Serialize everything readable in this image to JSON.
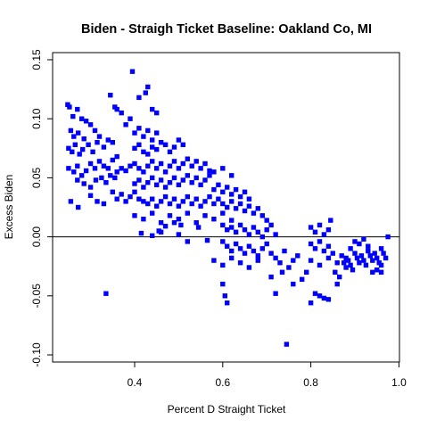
{
  "chart_data": {
    "type": "scatter",
    "title": "Biden - Straigh Ticket Baseline: Oakland Co, MI",
    "xlabel": "Percent D Straight Ticket",
    "ylabel": "Excess Biden",
    "xlim": [
      0.23,
      0.985
    ],
    "ylim": [
      -0.1,
      0.15
    ],
    "x_ticks": [
      0.4,
      0.6,
      0.8,
      1.0
    ],
    "x_tick_labels": [
      "0.4",
      "0.6",
      "0.8",
      "1.0"
    ],
    "y_ticks": [
      -0.1,
      -0.05,
      0.0,
      0.05,
      0.1,
      0.15
    ],
    "y_tick_labels": [
      "-0.10",
      "-0.05",
      "0.00",
      "0.05",
      "0.10",
      "0.15"
    ],
    "reference_line_y": 0.0,
    "grid": false,
    "legend": "none",
    "colors": {
      "points": "#0000ff",
      "axes": "#000000",
      "reference_line": "#000000"
    },
    "points": [
      [
        0.248,
        0.112
      ],
      [
        0.252,
        0.11
      ],
      [
        0.26,
        0.102
      ],
      [
        0.27,
        0.108
      ],
      [
        0.28,
        0.1
      ],
      [
        0.29,
        0.098
      ],
      [
        0.255,
        0.09
      ],
      [
        0.262,
        0.085
      ],
      [
        0.272,
        0.088
      ],
      [
        0.285,
        0.083
      ],
      [
        0.3,
        0.095
      ],
      [
        0.31,
        0.09
      ],
      [
        0.25,
        0.075
      ],
      [
        0.258,
        0.072
      ],
      [
        0.265,
        0.078
      ],
      [
        0.275,
        0.07
      ],
      [
        0.282,
        0.074
      ],
      [
        0.295,
        0.078
      ],
      [
        0.305,
        0.072
      ],
      [
        0.315,
        0.08
      ],
      [
        0.32,
        0.085
      ],
      [
        0.33,
        0.076
      ],
      [
        0.34,
        0.082
      ],
      [
        0.35,
        0.08
      ],
      [
        0.25,
        0.058
      ],
      [
        0.262,
        0.055
      ],
      [
        0.27,
        0.06
      ],
      [
        0.28,
        0.052
      ],
      [
        0.29,
        0.056
      ],
      [
        0.3,
        0.062
      ],
      [
        0.31,
        0.058
      ],
      [
        0.32,
        0.064
      ],
      [
        0.33,
        0.06
      ],
      [
        0.34,
        0.058
      ],
      [
        0.35,
        0.065
      ],
      [
        0.36,
        0.068
      ],
      [
        0.27,
        0.048
      ],
      [
        0.285,
        0.045
      ],
      [
        0.3,
        0.042
      ],
      [
        0.312,
        0.048
      ],
      [
        0.325,
        0.05
      ],
      [
        0.335,
        0.046
      ],
      [
        0.345,
        0.052
      ],
      [
        0.355,
        0.05
      ],
      [
        0.36,
        0.055
      ],
      [
        0.37,
        0.058
      ],
      [
        0.38,
        0.056
      ],
      [
        0.39,
        0.06
      ],
      [
        0.255,
        0.03
      ],
      [
        0.272,
        0.025
      ],
      [
        0.3,
        0.035
      ],
      [
        0.315,
        0.03
      ],
      [
        0.33,
        0.028
      ],
      [
        0.35,
        0.038
      ],
      [
        0.36,
        0.032
      ],
      [
        0.37,
        0.036
      ],
      [
        0.38,
        0.03
      ],
      [
        0.39,
        0.034
      ],
      [
        0.4,
        0.038
      ],
      [
        0.41,
        0.032
      ],
      [
        0.345,
        0.12
      ],
      [
        0.355,
        0.11
      ],
      [
        0.36,
        0.108
      ],
      [
        0.37,
        0.105
      ],
      [
        0.38,
        0.095
      ],
      [
        0.39,
        0.1
      ],
      [
        0.395,
        0.14
      ],
      [
        0.41,
        0.118
      ],
      [
        0.425,
        0.122
      ],
      [
        0.43,
        0.127
      ],
      [
        0.44,
        0.108
      ],
      [
        0.45,
        0.105
      ],
      [
        0.4,
        0.088
      ],
      [
        0.41,
        0.092
      ],
      [
        0.42,
        0.085
      ],
      [
        0.43,
        0.09
      ],
      [
        0.44,
        0.082
      ],
      [
        0.45,
        0.088
      ],
      [
        0.4,
        0.075
      ],
      [
        0.41,
        0.078
      ],
      [
        0.42,
        0.072
      ],
      [
        0.43,
        0.07
      ],
      [
        0.44,
        0.076
      ],
      [
        0.45,
        0.074
      ],
      [
        0.46,
        0.08
      ],
      [
        0.47,
        0.078
      ],
      [
        0.48,
        0.072
      ],
      [
        0.49,
        0.076
      ],
      [
        0.5,
        0.082
      ],
      [
        0.51,
        0.078
      ],
      [
        0.4,
        0.062
      ],
      [
        0.41,
        0.058
      ],
      [
        0.42,
        0.055
      ],
      [
        0.43,
        0.06
      ],
      [
        0.44,
        0.064
      ],
      [
        0.45,
        0.058
      ],
      [
        0.46,
        0.062
      ],
      [
        0.47,
        0.055
      ],
      [
        0.48,
        0.06
      ],
      [
        0.49,
        0.064
      ],
      [
        0.5,
        0.058
      ],
      [
        0.51,
        0.062
      ],
      [
        0.52,
        0.066
      ],
      [
        0.53,
        0.06
      ],
      [
        0.54,
        0.064
      ],
      [
        0.55,
        0.058
      ],
      [
        0.56,
        0.062
      ],
      [
        0.57,
        0.056
      ],
      [
        0.4,
        0.045
      ],
      [
        0.41,
        0.048
      ],
      [
        0.42,
        0.042
      ],
      [
        0.43,
        0.046
      ],
      [
        0.44,
        0.05
      ],
      [
        0.45,
        0.044
      ],
      [
        0.46,
        0.048
      ],
      [
        0.47,
        0.042
      ],
      [
        0.48,
        0.046
      ],
      [
        0.49,
        0.05
      ],
      [
        0.5,
        0.044
      ],
      [
        0.51,
        0.048
      ],
      [
        0.52,
        0.052
      ],
      [
        0.53,
        0.046
      ],
      [
        0.54,
        0.05
      ],
      [
        0.55,
        0.044
      ],
      [
        0.56,
        0.048
      ],
      [
        0.57,
        0.052
      ],
      [
        0.42,
        0.03
      ],
      [
        0.43,
        0.028
      ],
      [
        0.44,
        0.032
      ],
      [
        0.45,
        0.026
      ],
      [
        0.46,
        0.03
      ],
      [
        0.47,
        0.034
      ],
      [
        0.48,
        0.028
      ],
      [
        0.49,
        0.032
      ],
      [
        0.5,
        0.026
      ],
      [
        0.51,
        0.03
      ],
      [
        0.52,
        0.034
      ],
      [
        0.53,
        0.028
      ],
      [
        0.54,
        0.032
      ],
      [
        0.55,
        0.026
      ],
      [
        0.56,
        0.03
      ],
      [
        0.57,
        0.034
      ],
      [
        0.58,
        0.028
      ],
      [
        0.59,
        0.032
      ],
      [
        0.4,
        0.018
      ],
      [
        0.42,
        0.015
      ],
      [
        0.44,
        0.02
      ],
      [
        0.46,
        0.012
      ],
      [
        0.48,
        0.018
      ],
      [
        0.5,
        0.015
      ],
      [
        0.52,
        0.02
      ],
      [
        0.54,
        0.012
      ],
      [
        0.56,
        0.018
      ],
      [
        0.58,
        0.015
      ],
      [
        0.6,
        0.02
      ],
      [
        0.62,
        0.014
      ],
      [
        0.415,
        0.003
      ],
      [
        0.455,
        0.005
      ],
      [
        0.5,
        0.002
      ],
      [
        0.52,
        -0.004
      ],
      [
        0.545,
        0.008
      ],
      [
        0.565,
        -0.003
      ],
      [
        0.335,
        -0.048
      ],
      [
        0.44,
        0.001
      ],
      [
        0.46,
        0.004
      ],
      [
        0.47,
        0.009
      ],
      [
        0.49,
        0.012
      ],
      [
        0.505,
        0.01
      ],
      [
        0.58,
        0.04
      ],
      [
        0.59,
        0.044
      ],
      [
        0.6,
        0.038
      ],
      [
        0.61,
        0.042
      ],
      [
        0.62,
        0.036
      ],
      [
        0.63,
        0.04
      ],
      [
        0.64,
        0.034
      ],
      [
        0.65,
        0.038
      ],
      [
        0.66,
        0.032
      ],
      [
        0.58,
        0.055
      ],
      [
        0.6,
        0.058
      ],
      [
        0.62,
        0.052
      ],
      [
        0.6,
        0.028
      ],
      [
        0.61,
        0.025
      ],
      [
        0.62,
        0.03
      ],
      [
        0.63,
        0.024
      ],
      [
        0.64,
        0.028
      ],
      [
        0.65,
        0.022
      ],
      [
        0.66,
        0.026
      ],
      [
        0.67,
        0.02
      ],
      [
        0.68,
        0.024
      ],
      [
        0.69,
        0.018
      ],
      [
        0.7,
        0.014
      ],
      [
        0.71,
        0.01
      ],
      [
        0.6,
        0.01
      ],
      [
        0.61,
        0.006
      ],
      [
        0.62,
        0.008
      ],
      [
        0.63,
        0.004
      ],
      [
        0.64,
        0.01
      ],
      [
        0.65,
        0.006
      ],
      [
        0.66,
        0.002
      ],
      [
        0.67,
        0.008
      ],
      [
        0.68,
        0.004
      ],
      [
        0.69,
        0.0
      ],
      [
        0.7,
        0.006
      ],
      [
        0.72,
        0.002
      ],
      [
        0.6,
        -0.004
      ],
      [
        0.61,
        -0.008
      ],
      [
        0.62,
        -0.012
      ],
      [
        0.63,
        -0.006
      ],
      [
        0.64,
        -0.01
      ],
      [
        0.65,
        -0.014
      ],
      [
        0.66,
        -0.008
      ],
      [
        0.67,
        -0.012
      ],
      [
        0.68,
        -0.016
      ],
      [
        0.69,
        -0.01
      ],
      [
        0.7,
        -0.006
      ],
      [
        0.71,
        -0.014
      ],
      [
        0.58,
        -0.02
      ],
      [
        0.6,
        -0.024
      ],
      [
        0.62,
        -0.018
      ],
      [
        0.64,
        -0.022
      ],
      [
        0.66,
        -0.026
      ],
      [
        0.68,
        -0.02
      ],
      [
        0.72,
        -0.018
      ],
      [
        0.73,
        -0.022
      ],
      [
        0.74,
        -0.012
      ],
      [
        0.75,
        -0.026
      ],
      [
        0.76,
        -0.02
      ],
      [
        0.77,
        -0.016
      ],
      [
        0.6,
        -0.04
      ],
      [
        0.605,
        -0.05
      ],
      [
        0.61,
        -0.056
      ],
      [
        0.71,
        -0.034
      ],
      [
        0.72,
        -0.048
      ],
      [
        0.735,
        -0.03
      ],
      [
        0.745,
        -0.091
      ],
      [
        0.76,
        -0.04
      ],
      [
        0.78,
        -0.036
      ],
      [
        0.79,
        -0.03
      ],
      [
        0.8,
        -0.056
      ],
      [
        0.81,
        -0.048
      ],
      [
        0.8,
        0.008
      ],
      [
        0.81,
        0.004
      ],
      [
        0.82,
        0.01
      ],
      [
        0.83,
        0.002
      ],
      [
        0.84,
        0.006
      ],
      [
        0.845,
        0.014
      ],
      [
        0.8,
        -0.006
      ],
      [
        0.81,
        -0.01
      ],
      [
        0.82,
        -0.004
      ],
      [
        0.83,
        -0.012
      ],
      [
        0.84,
        -0.008
      ],
      [
        0.85,
        -0.014
      ],
      [
        0.8,
        -0.02
      ],
      [
        0.82,
        -0.024
      ],
      [
        0.84,
        -0.018
      ],
      [
        0.86,
        -0.022
      ],
      [
        0.855,
        -0.03
      ],
      [
        0.865,
        -0.034
      ],
      [
        0.82,
        -0.05
      ],
      [
        0.83,
        -0.052
      ],
      [
        0.84,
        -0.053
      ],
      [
        0.86,
        -0.04
      ],
      [
        0.88,
        -0.018
      ],
      [
        0.89,
        -0.01
      ],
      [
        0.87,
        -0.016
      ],
      [
        0.875,
        -0.022
      ],
      [
        0.88,
        -0.026
      ],
      [
        0.885,
        -0.02
      ],
      [
        0.89,
        -0.024
      ],
      [
        0.895,
        -0.028
      ],
      [
        0.9,
        -0.014
      ],
      [
        0.905,
        -0.018
      ],
      [
        0.91,
        -0.022
      ],
      [
        0.915,
        -0.016
      ],
      [
        0.92,
        -0.02
      ],
      [
        0.925,
        -0.024
      ],
      [
        0.93,
        -0.012
      ],
      [
        0.935,
        -0.016
      ],
      [
        0.94,
        -0.02
      ],
      [
        0.945,
        -0.014
      ],
      [
        0.95,
        -0.018
      ],
      [
        0.955,
        -0.022
      ],
      [
        0.96,
        -0.01
      ],
      [
        0.965,
        -0.014
      ],
      [
        0.97,
        -0.018
      ],
      [
        0.975,
        0.0
      ],
      [
        0.95,
        -0.028
      ],
      [
        0.96,
        -0.024
      ],
      [
        0.9,
        -0.004
      ],
      [
        0.91,
        -0.006
      ],
      [
        0.92,
        -0.002
      ],
      [
        0.93,
        -0.008
      ],
      [
        0.94,
        -0.03
      ],
      [
        0.96,
        -0.03
      ]
    ]
  }
}
